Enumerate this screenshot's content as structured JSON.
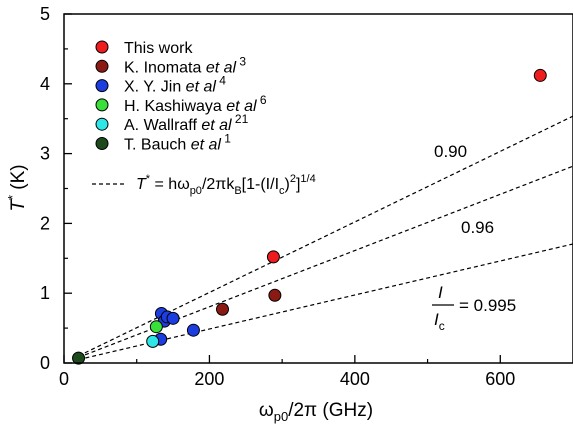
{
  "chart_data": {
    "type": "scatter",
    "xlabel": "ω_p0/2π (GHz)",
    "ylabel": "T* (K)",
    "xlim": [
      0,
      700
    ],
    "ylim": [
      0,
      5
    ],
    "x_ticks": [
      0,
      200,
      400,
      600
    ],
    "y_ticks": [
      0,
      1,
      2,
      3,
      4,
      5
    ],
    "x_tick_labels": [
      "0",
      "200",
      "400",
      "600"
    ],
    "y_tick_labels": [
      "0",
      "1",
      "2",
      "3",
      "4",
      "5"
    ],
    "grid": false,
    "legend_placement": "top-left",
    "series": [
      {
        "name": "This work",
        "ref": "",
        "color": "#ee1c1c",
        "points": [
          [
            288,
            1.52
          ],
          [
            655,
            4.12
          ]
        ]
      },
      {
        "name": "K. Inomata",
        "etal": "et al",
        "ref": "3",
        "color": "#8b1a14",
        "points": [
          [
            218,
            0.77
          ],
          [
            290,
            0.97
          ]
        ]
      },
      {
        "name": "X. Y. Jin",
        "etal": "et al",
        "ref": "4",
        "color": "#1c3ee0",
        "points": [
          [
            134,
            0.71
          ],
          [
            138,
            0.6
          ],
          [
            142,
            0.66
          ],
          [
            150,
            0.64
          ],
          [
            133,
            0.34
          ],
          [
            178,
            0.47
          ]
        ]
      },
      {
        "name": "H. Kashiwaya",
        "etal": "et al",
        "ref": "6",
        "color": "#39e039",
        "points": [
          [
            127,
            0.52
          ]
        ]
      },
      {
        "name": "A. Wallraff",
        "etal": "et al",
        "ref": "21",
        "color": "#2ee6e6",
        "points": [
          [
            122,
            0.31
          ]
        ]
      },
      {
        "name": "T. Bauch",
        "etal": "et al",
        "ref": "1",
        "color": "#1c4a1c",
        "points": [
          [
            20,
            0.07
          ]
        ]
      }
    ],
    "fit_legend": {
      "dash_label": "---",
      "lhs": "T",
      "lhs_sup": "*",
      "eq_a": " = hω",
      "eq_sub_a": "p0",
      "eq_b": "/2πk",
      "eq_sub_b": "B",
      "eq_c": "[1-(I/I",
      "eq_sub_c": "c",
      "eq_d": ")",
      "eq_sup_d": "2",
      "eq_e": "]",
      "eq_sup_e": "1/4"
    },
    "fit_curves": [
      {
        "label": "0.90",
        "slope": 0.005053
      },
      {
        "label": "0.96",
        "slope": 0.004028
      },
      {
        "label": "= 0.995",
        "slope": 0.002436
      }
    ],
    "curve_annotation": {
      "numerator": "I",
      "denominator": "I",
      "denominator_sub": "c"
    }
  }
}
